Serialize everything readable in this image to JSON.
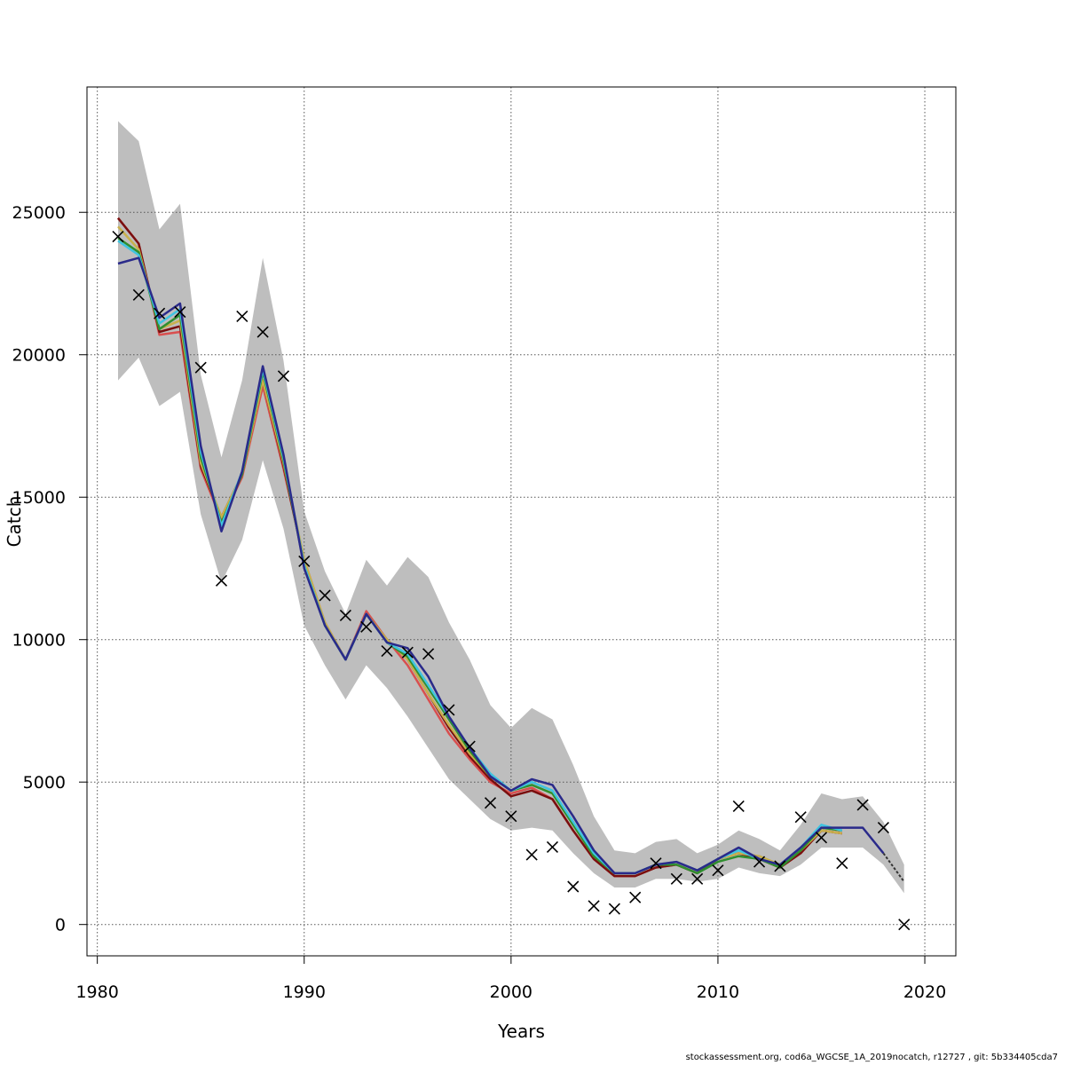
{
  "footer_text": "stockassessment.org, cod6a_WGCSE_1A_2019nocatch, r12727 , git: 5b334405cda7",
  "chart_data": {
    "type": "line",
    "title": "",
    "xlabel": "Years",
    "ylabel": "Catch",
    "xlim": [
      1979.5,
      2021.5
    ],
    "ylim": [
      -1100,
      29400
    ],
    "x_ticks": [
      1980,
      1990,
      2000,
      2010,
      2020
    ],
    "y_ticks": [
      0,
      5000,
      10000,
      15000,
      20000,
      25000
    ],
    "x_tick_labels": [
      "1980",
      "1990",
      "2000",
      "2010",
      "2020"
    ],
    "y_tick_labels": [
      "0",
      "5000",
      "10000",
      "15000",
      "20000",
      "25000"
    ],
    "grid": true,
    "band_color": "#bebebe",
    "confidence_band": {
      "x": [
        1981,
        1982,
        1983,
        1984,
        1985,
        1986,
        1987,
        1988,
        1989,
        1990,
        1991,
        1992,
        1993,
        1994,
        1995,
        1996,
        1997,
        1998,
        1999,
        2000,
        2001,
        2002,
        2003,
        2004,
        2005,
        2006,
        2007,
        2008,
        2009,
        2010,
        2011,
        2012,
        2013,
        2014,
        2015,
        2016,
        2017,
        2018,
        2019
      ],
      "lower": [
        19100,
        19900,
        18200,
        18700,
        14400,
        12000,
        13500,
        16300,
        13900,
        10500,
        9100,
        7900,
        9100,
        8300,
        7300,
        6200,
        5100,
        4400,
        3700,
        3300,
        3400,
        3300,
        2500,
        1800,
        1300,
        1300,
        1600,
        1600,
        1500,
        1600,
        2000,
        1800,
        1700,
        2100,
        2700,
        2700,
        2700,
        2100,
        1100
      ],
      "upper": [
        28200,
        27500,
        24400,
        25300,
        19300,
        16400,
        19100,
        23400,
        19800,
        14500,
        12400,
        10900,
        12800,
        11900,
        12900,
        12200,
        10600,
        9300,
        7700,
        6900,
        7600,
        7200,
        5600,
        3800,
        2600,
        2500,
        2900,
        3000,
        2500,
        2800,
        3300,
        3000,
        2600,
        3500,
        4600,
        4400,
        4500,
        3600,
        2100
      ]
    },
    "series": [
      {
        "name": "red",
        "color": "#d94f4f",
        "x": [
          1981,
          1982,
          1983,
          1984,
          1985,
          1986,
          1987,
          1988,
          1989,
          1990,
          1991,
          1992,
          1993,
          1994,
          1995,
          1996,
          1997,
          1998,
          1999,
          2000,
          2001,
          2002,
          2003,
          2004,
          2005,
          2006,
          2007,
          2008,
          2009,
          2010,
          2011,
          2012,
          2013,
          2014,
          2015,
          2016
        ],
        "y": [
          24800,
          23900,
          20700,
          20800,
          16000,
          14200,
          15700,
          18900,
          16000,
          12800,
          10600,
          9300,
          11000,
          10000,
          9100,
          7900,
          6700,
          5800,
          5000,
          4600,
          4800,
          4400,
          3300,
          2300,
          1700,
          1700,
          2000,
          2100,
          1800,
          2300,
          2500,
          2300,
          2000,
          2500,
          3300,
          3200
        ]
      },
      {
        "name": "darkred",
        "color": "#7a0f0f",
        "x": [
          1981,
          1982,
          1983,
          1984,
          1985,
          1986,
          1987,
          1988,
          1989,
          1990,
          1991,
          1992,
          1993,
          1994,
          1995,
          1996,
          1997,
          1998,
          1999,
          2000,
          2001,
          2002,
          2003,
          2004,
          2005,
          2006,
          2007,
          2008,
          2009,
          2010,
          2011,
          2012,
          2013,
          2014,
          2015,
          2016
        ],
        "y": [
          24800,
          23900,
          20800,
          21000,
          16100,
          14300,
          15800,
          19100,
          16100,
          12700,
          10500,
          9300,
          10900,
          10000,
          9300,
          8100,
          6900,
          5900,
          5100,
          4500,
          4700,
          4400,
          3300,
          2300,
          1700,
          1700,
          2000,
          2100,
          1800,
          2300,
          2500,
          2300,
          2000,
          2500,
          3300,
          3200
        ]
      },
      {
        "name": "gold",
        "color": "#c9b04c",
        "x": [
          1981,
          1982,
          1983,
          1984,
          1985,
          1986,
          1987,
          1988,
          1989,
          1990,
          1991,
          1992,
          1993,
          1994,
          1995,
          1996,
          1997,
          1998,
          1999,
          2000,
          2001,
          2002,
          2003,
          2004,
          2005,
          2006,
          2007,
          2008,
          2009,
          2010,
          2011,
          2012,
          2013,
          2014,
          2015,
          2016
        ],
        "y": [
          24500,
          23700,
          20900,
          21200,
          16200,
          14300,
          15800,
          19100,
          16200,
          12800,
          10600,
          9300,
          10900,
          10000,
          9300,
          8100,
          7000,
          6000,
          5200,
          4700,
          4900,
          4600,
          3500,
          2400,
          1800,
          1800,
          2100,
          2200,
          1900,
          2300,
          2500,
          2400,
          2100,
          2600,
          3300,
          3200
        ]
      },
      {
        "name": "green",
        "color": "#2f8f2f",
        "x": [
          1981,
          1982,
          1983,
          1984,
          1985,
          1986,
          1987,
          1988,
          1989,
          1990,
          1991,
          1992,
          1993,
          1994,
          1995,
          1996,
          1997,
          1998,
          1999,
          2000,
          2001,
          2002,
          2003,
          2004,
          2005,
          2006,
          2007,
          2008,
          2009,
          2010,
          2011,
          2012,
          2013,
          2014,
          2015,
          2016
        ],
        "y": [
          24100,
          23600,
          20900,
          21400,
          16400,
          14100,
          15800,
          19400,
          16300,
          12600,
          10500,
          9300,
          10900,
          9900,
          9400,
          8300,
          7200,
          6100,
          5200,
          4700,
          4900,
          4600,
          3500,
          2400,
          1800,
          1800,
          2100,
          2100,
          1800,
          2200,
          2400,
          2300,
          2000,
          2600,
          3400,
          3300
        ]
      },
      {
        "name": "cyan",
        "color": "#3fc4e0",
        "x": [
          1981,
          1982,
          1983,
          1984,
          1985,
          1986,
          1987,
          1988,
          1989,
          1990,
          1991,
          1992,
          1993,
          1994,
          1995,
          1996,
          1997,
          1998,
          1999,
          2000,
          2001,
          2002,
          2003,
          2004,
          2005,
          2006,
          2007,
          2008,
          2009,
          2010,
          2011,
          2012,
          2013,
          2014,
          2015,
          2016
        ],
        "y": [
          24000,
          23500,
          21100,
          21600,
          16600,
          14000,
          15900,
          19500,
          16400,
          12600,
          10500,
          9300,
          10900,
          9900,
          9500,
          8400,
          7300,
          6200,
          5300,
          4700,
          5000,
          4700,
          3600,
          2500,
          1800,
          1800,
          2100,
          2200,
          1900,
          2300,
          2600,
          2300,
          2100,
          2700,
          3500,
          3300
        ]
      },
      {
        "name": "navy",
        "color": "#2a2a8a",
        "x": [
          1981,
          1982,
          1983,
          1984,
          1985,
          1986,
          1987,
          1988,
          1989,
          1990,
          1991,
          1992,
          1993,
          1994,
          1995,
          1996,
          1997,
          1998,
          1999,
          2000,
          2001,
          2002,
          2003,
          2004,
          2005,
          2006,
          2007,
          2008,
          2009,
          2010,
          2011,
          2012,
          2013,
          2014,
          2015,
          2016,
          2017,
          2018
        ],
        "y": [
          23200,
          23400,
          21300,
          21800,
          16800,
          13800,
          15900,
          19600,
          16500,
          12500,
          10500,
          9300,
          10900,
          9900,
          9700,
          8700,
          7300,
          6200,
          5200,
          4700,
          5100,
          4900,
          3800,
          2600,
          1800,
          1800,
          2100,
          2200,
          1900,
          2300,
          2700,
          2300,
          2100,
          2700,
          3400,
          3400,
          3400,
          2500
        ]
      },
      {
        "name": "projection",
        "color": "#333333",
        "dashed": true,
        "x": [
          2018,
          2019
        ],
        "y": [
          2500,
          1500
        ]
      }
    ],
    "observations": {
      "x": [
        1981,
        1982,
        1983,
        1984,
        1985,
        1986,
        1987,
        1988,
        1989,
        1990,
        1991,
        1992,
        1993,
        1994,
        1995,
        1996,
        1997,
        1998,
        1999,
        2000,
        2001,
        2002,
        2003,
        2004,
        2005,
        2006,
        2007,
        2008,
        2009,
        2010,
        2011,
        2012,
        2013,
        2014,
        2015,
        2016,
        2017,
        2018,
        2019
      ],
      "y": [
        24150,
        22100,
        21450,
        21500,
        19550,
        12070,
        21350,
        20800,
        19250,
        12750,
        11550,
        10850,
        10450,
        9600,
        9550,
        9500,
        7530,
        6250,
        4270,
        3800,
        2450,
        2720,
        1330,
        650,
        550,
        950,
        2150,
        1600,
        1600,
        1900,
        4150,
        2200,
        2050,
        3770,
        3050,
        2150,
        4200,
        3400,
        0
      ]
    }
  }
}
